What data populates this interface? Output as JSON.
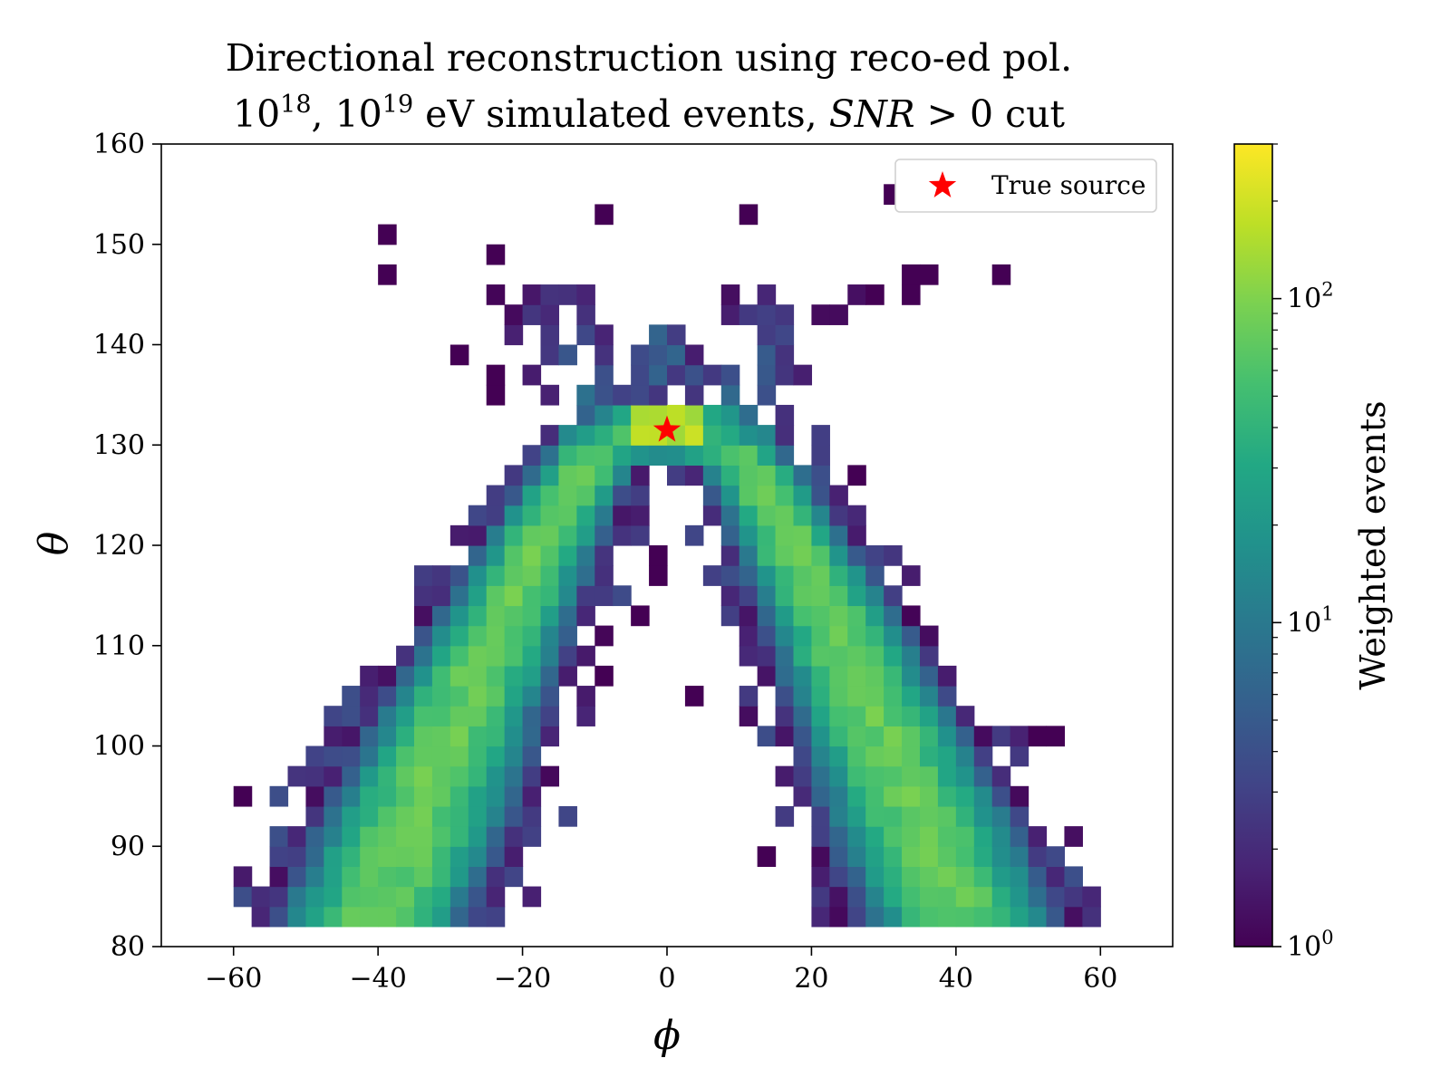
{
  "chart_data": {
    "type": "heatmap",
    "title_lines": {
      "line1": "Directional reconstruction using reco-ed pol.",
      "line2_exp_base_a": "10",
      "line2_exp_a": "18",
      "line2_sep": ", ",
      "line2_exp_base_b": "10",
      "line2_exp_b": "19",
      "line2_mid": " eV simulated events, ",
      "line2_math": "SNR",
      "line2_tail": " > 0 cut"
    },
    "xlabel": "ϕ",
    "ylabel": "θ",
    "xlim": [
      -70,
      70
    ],
    "ylim": [
      80,
      160
    ],
    "xticks": [
      -60,
      -40,
      -20,
      0,
      20,
      40,
      60
    ],
    "xtick_labels": [
      "−60",
      "−40",
      "−20",
      "0",
      "20",
      "40",
      "60"
    ],
    "yticks": [
      80,
      90,
      100,
      110,
      120,
      130,
      140,
      150,
      160
    ],
    "ytick_labels": [
      "80",
      "90",
      "100",
      "110",
      "120",
      "130",
      "140",
      "150",
      "160"
    ],
    "bin_width_phi": 2.5,
    "bin_height_theta": 2.0,
    "color_scale": "log",
    "colormap": "viridis",
    "colorbar": {
      "label": "Weighted events",
      "range": [
        1,
        300
      ],
      "major_ticks": [
        1,
        10,
        100
      ],
      "tick_base": "10",
      "tick_exponents": [
        "0",
        "1",
        "2"
      ]
    },
    "legend": {
      "location": "upper right",
      "entries": [
        "True source"
      ]
    },
    "true_source": {
      "phi": 0.0,
      "theta": 131.5,
      "color": "#ff0000",
      "marker": "star-icon"
    },
    "density_structure": {
      "arms": [
        {
          "side": "left",
          "phi_at_theta_130": -9,
          "phi_at_theta_84": -40,
          "inner_edge_phi_at_theta_130": -1,
          "peak_value": 80
        },
        {
          "side": "right",
          "phi_at_theta_130": 9,
          "phi_at_theta_84": 40,
          "inner_edge_phi_at_theta_130": 1,
          "peak_value": 80
        }
      ],
      "apex": {
        "phi": 0,
        "theta": 131,
        "peak_value": 200
      },
      "upper_spread": {
        "theta_min": 134,
        "theta_max": 146,
        "typical_value": 5
      }
    }
  }
}
